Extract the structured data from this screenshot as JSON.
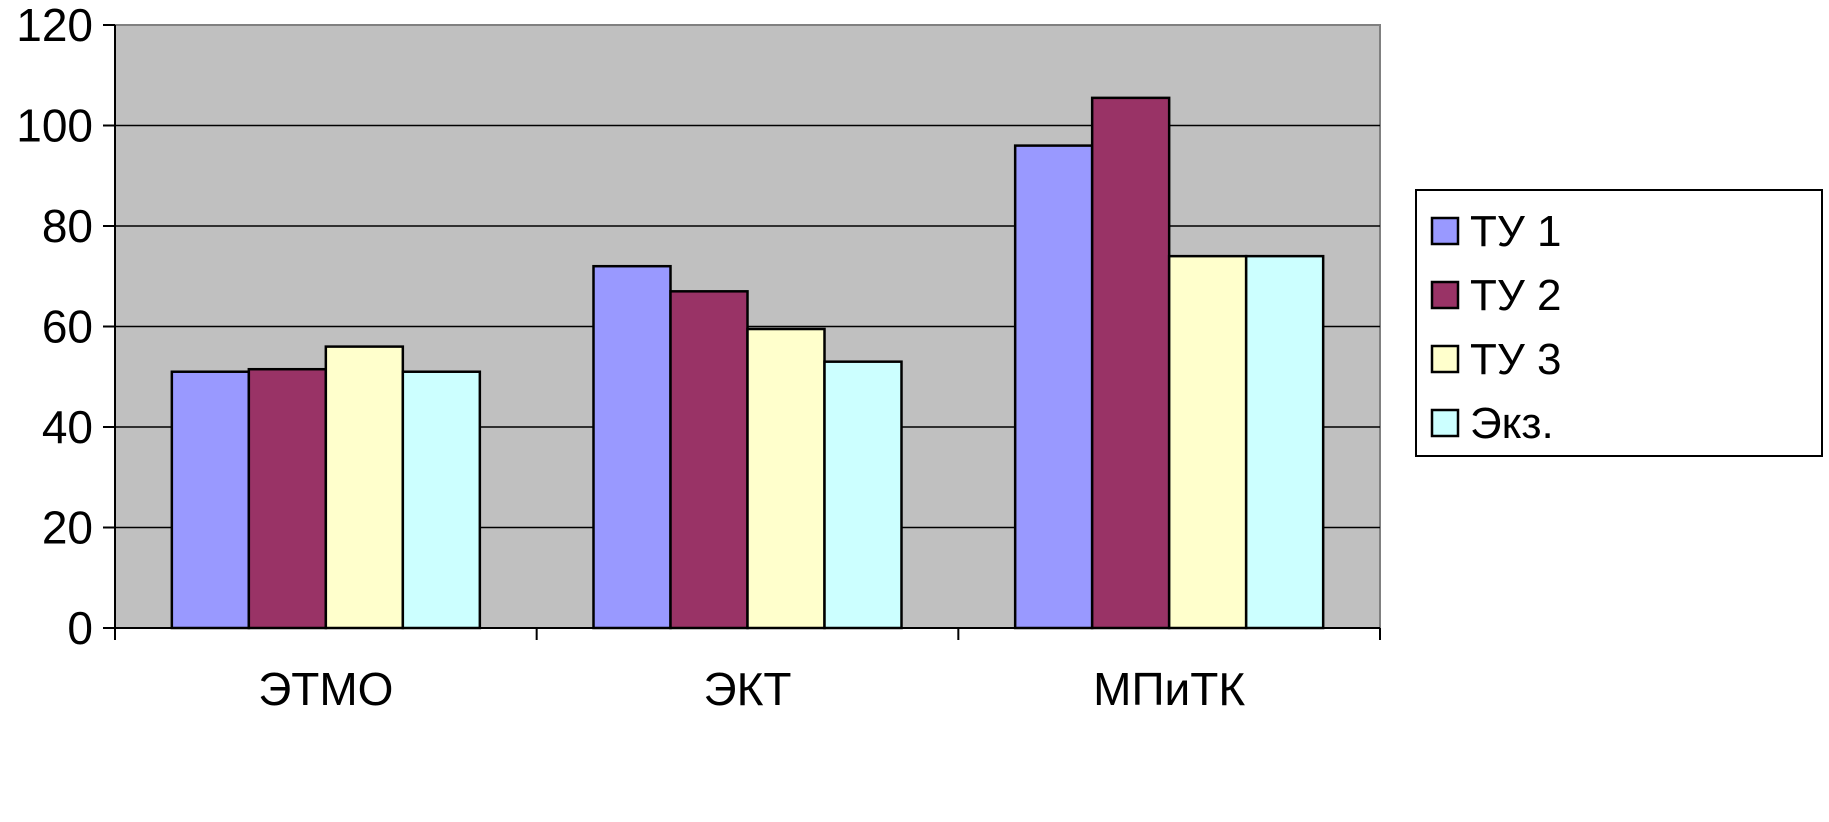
{
  "chart_data": {
    "type": "bar",
    "categories": [
      "ЭТМО",
      "ЭКТ",
      "МПиТК"
    ],
    "series": [
      {
        "name": "ТУ 1",
        "values": [
          51,
          72,
          96
        ],
        "color": "#9999ff"
      },
      {
        "name": "ТУ 2",
        "values": [
          51.5,
          67,
          105.5
        ],
        "color": "#993366"
      },
      {
        "name": "ТУ 3",
        "values": [
          56,
          59.5,
          74
        ],
        "color": "#ffffcc"
      },
      {
        "name": "Экз.",
        "values": [
          51,
          53,
          74
        ],
        "color": "#ccffff"
      }
    ],
    "title": "",
    "xlabel": "",
    "ylabel": "",
    "ylim": [
      0,
      120
    ],
    "yticks": [
      "0",
      "20",
      "40",
      "60",
      "80",
      "100",
      "120"
    ],
    "grid": true,
    "legend_position": "right",
    "plot_background": "#c0c0c0"
  }
}
